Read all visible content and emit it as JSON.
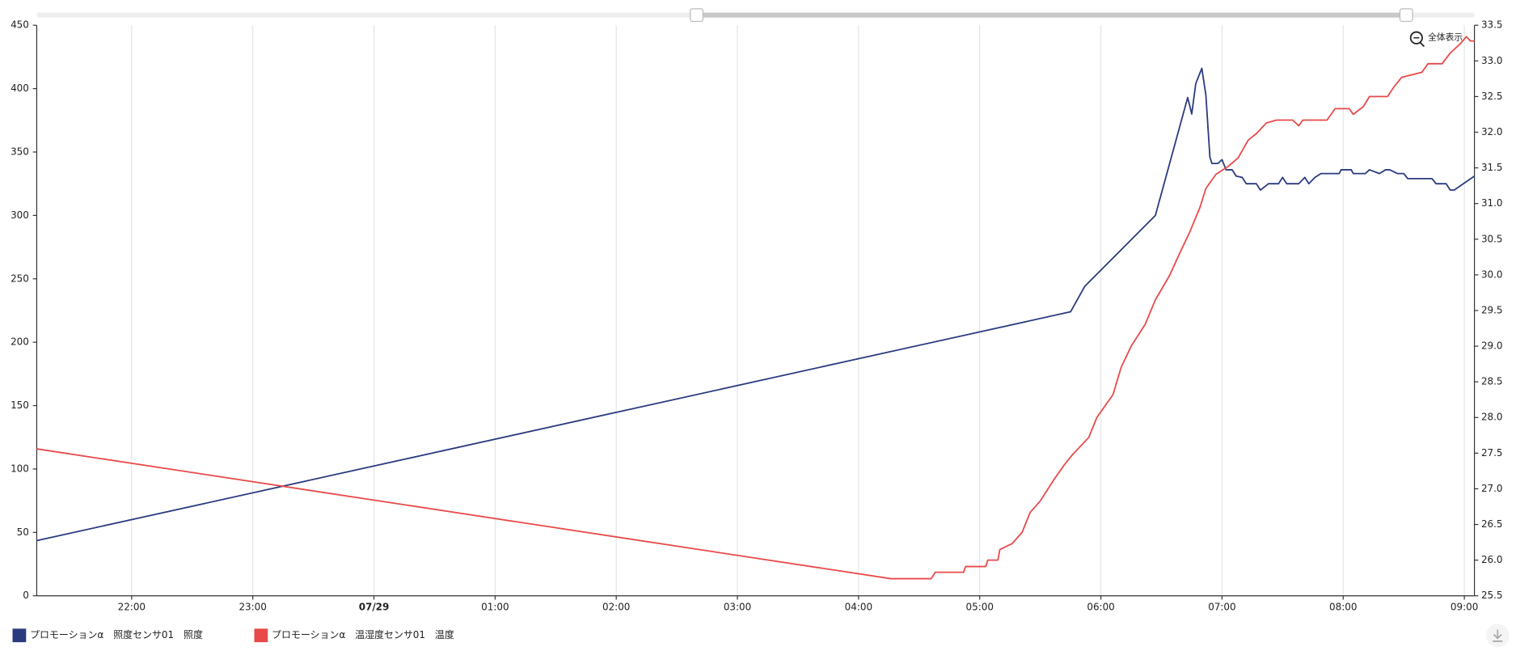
{
  "chart_data": {
    "type": "line",
    "zoom_button": "全体表示",
    "xlim": [
      "21:13",
      "09:05"
    ],
    "xticks": [
      "22:00",
      "23:00",
      {
        "value": "00:00",
        "label": "07/29"
      },
      "01:00",
      "02:00",
      "03:00",
      "04:00",
      "05:00",
      "06:00",
      "07:00",
      "08:00",
      "09:00"
    ],
    "ylim": [
      0,
      450
    ],
    "yticks": [
      0,
      50,
      100,
      150,
      200,
      250,
      300,
      350,
      400,
      450
    ],
    "y2lim": [
      25.5,
      33.5
    ],
    "y2ticks": [
      25.5,
      {
        "value": 26,
        "label": "26.0"
      },
      26.5,
      {
        "value": 27,
        "label": "27.0"
      },
      27.5,
      {
        "value": 28,
        "label": "28.0"
      },
      28.5,
      {
        "value": 29,
        "label": "29.0"
      },
      29.5,
      {
        "value": 30,
        "label": "30.0"
      },
      30.5,
      {
        "value": 31,
        "label": "31.0"
      },
      31.5,
      {
        "value": 32,
        "label": "32.0"
      },
      32.5,
      {
        "value": 33,
        "label": "33.0"
      },
      33.5
    ],
    "grid": true,
    "legend": "bottom-left",
    "series": [
      {
        "name": "プロモーションα　照度センサ01　照度",
        "color": "#2b3a7f",
        "x": [
          "21:13",
          "05:45",
          "05:52",
          "06:27",
          "06:43",
          "06:45",
          "06:47",
          "06:50",
          "06:52",
          "06:54",
          "06:55",
          "06:58",
          "07:00",
          "07:02",
          "07:05",
          "07:07",
          "07:10",
          "07:12",
          "07:17",
          "07:19",
          "07:23",
          "07:28",
          "07:30",
          "07:32",
          "07:38",
          "07:41",
          "07:43",
          "07:46",
          "07:49",
          "07:58",
          "07:59",
          "08:04",
          "08:05",
          "08:11",
          "08:13",
          "08:18",
          "08:21",
          "08:23",
          "08:27",
          "08:30",
          "08:32",
          "08:44",
          "08:46",
          "08:51",
          "08:53",
          "08:55",
          "09:05"
        ],
        "values": [
          43.5,
          224,
          244,
          300,
          393,
          380,
          404,
          416,
          395,
          346,
          341,
          341,
          344,
          336,
          336,
          331,
          330,
          325,
          325,
          320,
          325,
          325,
          330,
          325,
          325,
          330,
          325,
          330,
          333,
          333,
          336,
          336,
          333,
          333,
          336,
          333,
          336,
          336,
          333,
          333,
          329,
          329,
          325,
          325,
          320,
          320,
          331
        ]
      },
      {
        "name": "プロモーションα　温湿度センサ01　温度",
        "color": "#e8494a",
        "axis": "y2",
        "x": [
          "21:13",
          "04:16",
          "04:36",
          "04:38",
          "04:52",
          "04:53",
          "05:03",
          "05:04",
          "05:09",
          "05:10",
          "05:16",
          "05:21",
          "05:25",
          "05:30",
          "05:37",
          "05:42",
          "05:46",
          "05:54",
          "05:58",
          "06:06",
          "06:10",
          "06:15",
          "06:22",
          "06:27",
          "06:34",
          "06:39",
          "06:44",
          "06:49",
          "06:52",
          "06:57",
          "07:03",
          "07:08",
          "07:13",
          "07:17",
          "07:22",
          "07:27",
          "07:35",
          "07:38",
          "07:40",
          "07:52",
          "07:56",
          "08:03",
          "08:05",
          "08:10",
          "08:13",
          "08:22",
          "08:25",
          "08:29",
          "08:39",
          "08:42",
          "08:49",
          "08:53",
          "08:58",
          "09:01",
          "09:03",
          "09:05"
        ],
        "values": [
          27.56,
          25.74,
          25.74,
          25.83,
          25.83,
          25.91,
          25.91,
          26.0,
          26.0,
          26.15,
          26.23,
          26.39,
          26.67,
          26.83,
          27.14,
          27.34,
          27.48,
          27.72,
          28.0,
          28.32,
          28.7,
          29.0,
          29.31,
          29.65,
          29.99,
          30.3,
          30.6,
          30.94,
          31.21,
          31.41,
          31.52,
          31.64,
          31.89,
          31.98,
          32.13,
          32.17,
          32.17,
          32.09,
          32.17,
          32.17,
          32.33,
          32.33,
          32.25,
          32.36,
          32.5,
          32.5,
          32.63,
          32.77,
          32.84,
          32.96,
          32.96,
          33.11,
          33.24,
          33.34,
          33.28,
          33.28
        ]
      }
    ]
  }
}
